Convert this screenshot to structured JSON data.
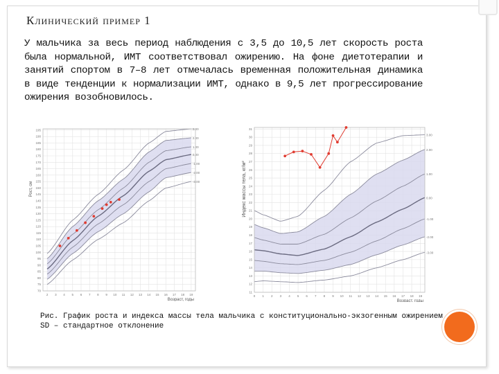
{
  "slide": {
    "title": "Клинический пример 1",
    "paragraph": "У мальчика за весь период наблюдения с 3,5 до 10,5 лет скорость роста была нормальной, ИМТ соответствовал ожирению. На фоне диетотерапии и занятий спортом в 7–8 лет отмечалась временная положительная динамика в виде тенденции к нормализации ИМТ, однако в 9,5 лет прогрессирование ожирения возобновилось.",
    "caption": "Рис. График роста и индекса массы тела мальчика с конституционально-экзогенным ожирением. SD – стандартное отклонение"
  },
  "colors": {
    "band": "#d9d9ef",
    "curve": "#8a8a9c",
    "median": "#6a6a80",
    "grid": "#e3e3e3",
    "point": "#e03c31",
    "accent": "#f26b1d"
  },
  "chart_data": [
    {
      "type": "line",
      "ylabel": "Рост, см",
      "xlabel": "Возраст, годы",
      "x_ticks": [
        2,
        3,
        4,
        5,
        6,
        7,
        8,
        9,
        10,
        11,
        12,
        13,
        14,
        15,
        16,
        17,
        18,
        19
      ],
      "y_ticks": [
        70,
        75,
        80,
        85,
        90,
        95,
        100,
        105,
        110,
        115,
        120,
        125,
        130,
        135,
        140,
        145,
        150,
        155,
        160,
        165,
        170,
        175,
        180,
        185,
        190,
        195
      ],
      "xlim": [
        1.5,
        19.5
      ],
      "ylim": [
        70,
        196
      ],
      "sd_lines": [
        "3.00",
        "2.00",
        "1.00",
        "0.00",
        "-1.00",
        "-2.00",
        "-3.00"
      ],
      "sd_curves": [
        {
          "sd": "3.00",
          "x": [
            2,
            5,
            8,
            11,
            14,
            16,
            19
          ],
          "y": [
            99,
            125,
            145,
            164,
            185,
            194,
            196
          ]
        },
        {
          "sd": "2.00",
          "x": [
            2,
            5,
            8,
            11,
            14,
            16,
            19
          ],
          "y": [
            95,
            120,
            140,
            157,
            178,
            187,
            189
          ]
        },
        {
          "sd": "1.00",
          "x": [
            2,
            5,
            8,
            11,
            14,
            16,
            19
          ],
          "y": [
            91,
            114,
            133,
            150,
            170,
            179,
            182
          ]
        },
        {
          "sd": "0.00",
          "x": [
            2,
            5,
            8,
            11,
            14,
            16,
            19
          ],
          "y": [
            87,
            109,
            128,
            144,
            163,
            172,
            176
          ]
        },
        {
          "sd": "-1.00",
          "x": [
            2,
            5,
            8,
            11,
            14,
            16,
            19
          ],
          "y": [
            83,
            104,
            122,
            137,
            155,
            165,
            169
          ]
        },
        {
          "sd": "-2.00",
          "x": [
            2,
            5,
            8,
            11,
            14,
            16,
            19
          ],
          "y": [
            79,
            99,
            116,
            130,
            147,
            158,
            162
          ]
        },
        {
          "sd": "-3.00",
          "x": [
            2,
            5,
            8,
            11,
            14,
            16,
            19
          ],
          "y": [
            75,
            94,
            110,
            123,
            140,
            150,
            155
          ]
        }
      ],
      "series": [
        {
          "x": [
            3.5,
            4.5,
            5.5,
            6.5,
            7.5,
            8.5,
            9.0,
            9.5,
            10.5
          ],
          "y": [
            105,
            111,
            117,
            123,
            128,
            134,
            137,
            139,
            141
          ]
        }
      ]
    },
    {
      "type": "line",
      "ylabel": "Индекс массы тела, кг/м²",
      "xlabel": "Возраст, годы",
      "x_ticks": [
        0,
        1,
        2,
        3,
        4,
        5,
        6,
        7,
        8,
        9,
        10,
        11,
        12,
        13,
        14,
        15,
        16,
        17,
        18,
        19
      ],
      "y_ticks": [
        11,
        12,
        13,
        14,
        15,
        16,
        17,
        18,
        19,
        20,
        21,
        22,
        23,
        24,
        25,
        26,
        27,
        28,
        29,
        30,
        31
      ],
      "xlim": [
        0,
        19.5
      ],
      "ylim": [
        11,
        31.2
      ],
      "sd_lines": [
        "3.00",
        "2.00",
        "1.00",
        "0.00",
        "-1.00",
        "-2.00",
        "-3.00"
      ],
      "sd_curves": [
        {
          "sd": "3.00",
          "x": [
            0,
            1,
            3,
            5,
            8,
            11,
            14,
            17,
            19.5
          ],
          "y": [
            21,
            20.5,
            19.7,
            20.3,
            23.5,
            27,
            29.3,
            30.2,
            30.3
          ]
        },
        {
          "sd": "2.00",
          "x": [
            0,
            1,
            3,
            5,
            8,
            11,
            14,
            17,
            19.5
          ],
          "y": [
            19.3,
            18.9,
            18.2,
            18.4,
            20.3,
            23,
            25.5,
            27.2,
            28.5
          ]
        },
        {
          "sd": "1.00",
          "x": [
            0,
            1,
            3,
            5,
            8,
            11,
            14,
            17,
            19.5
          ],
          "y": [
            17.7,
            17.4,
            16.9,
            16.9,
            18.1,
            20.1,
            22.2,
            24,
            25.5
          ]
        },
        {
          "sd": "0.00",
          "x": [
            0,
            1,
            3,
            5,
            8,
            11,
            14,
            17,
            19.5
          ],
          "y": [
            16.2,
            16.1,
            15.7,
            15.5,
            16.3,
            17.8,
            19.6,
            21.2,
            22.6
          ]
        },
        {
          "sd": "-1.00",
          "x": [
            0,
            1,
            3,
            5,
            8,
            11,
            14,
            17,
            19.5
          ],
          "y": [
            14.9,
            14.8,
            14.5,
            14.4,
            14.9,
            15.9,
            17.3,
            18.8,
            20
          ]
        },
        {
          "sd": "-2.00",
          "x": [
            0,
            1,
            3,
            5,
            8,
            11,
            14,
            17,
            19.5
          ],
          "y": [
            13.6,
            13.6,
            13.4,
            13.3,
            13.7,
            14.4,
            15.6,
            16.8,
            17.8
          ]
        },
        {
          "sd": "-3.00",
          "x": [
            0,
            1,
            3,
            5,
            8,
            11,
            14,
            17,
            19.5
          ],
          "y": [
            12.3,
            12.4,
            12.3,
            12.2,
            12.5,
            13,
            14,
            15,
            15.9
          ]
        }
      ],
      "series": [
        {
          "x": [
            3.5,
            4.5,
            5.5,
            6.5,
            7.5,
            8.5,
            9.0,
            9.5,
            10.5
          ],
          "y": [
            27.7,
            28.2,
            28.3,
            27.9,
            26.3,
            28,
            30.2,
            29.4,
            31.2
          ]
        }
      ]
    }
  ]
}
